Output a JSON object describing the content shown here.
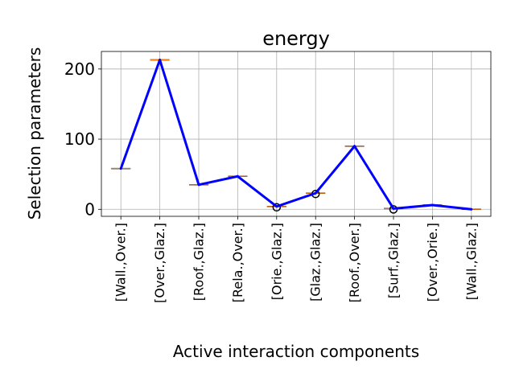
{
  "chart_data": {
    "type": "line",
    "title": "energy",
    "xlabel": "Active interaction components",
    "ylabel": "Selection parameters",
    "categories": [
      "[Wall.,Over.]",
      "[Over.,Glaz.]",
      "[Roof.,Glaz.]",
      "[Rela.,Over.]",
      "[Orie.,Glaz.]",
      "[Glaz.,Glaz.]",
      "[Roof.,Over.]",
      "[Surf.,Glaz.]",
      "[Over.,Orie.]",
      "[Wall.,Glaz.]"
    ],
    "series": [
      {
        "values": [
          58,
          213,
          35,
          47,
          4,
          23,
          90,
          1,
          6,
          0
        ]
      }
    ],
    "box_medians": [
      58,
      213,
      35,
      47,
      4,
      23,
      90,
      1,
      6,
      0
    ],
    "outlier_categories": [
      4,
      5,
      7
    ],
    "ylim": [
      -10,
      225
    ],
    "yticks": [
      0,
      100,
      200
    ],
    "grid": true,
    "colors": {
      "line": "#0000ff",
      "median": "#ff7f0e",
      "outlier": "#000000",
      "grid": "#b0b0b0"
    }
  }
}
